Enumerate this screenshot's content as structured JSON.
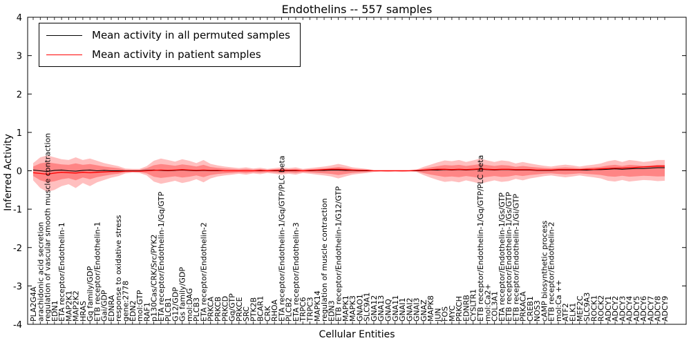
{
  "title": "Endothelins -- 557 samples",
  "axes": {
    "x_label": "Cellular Entities",
    "y_label": "Inferred Activity"
  },
  "legend": {
    "items": [
      {
        "label": "Mean activity in all permuted samples",
        "color": "#000000"
      },
      {
        "label": "Mean activity in patient samples",
        "color": "#ff0000"
      }
    ]
  },
  "chart_data": {
    "type": "line",
    "title": "Endothelins -- 557 samples",
    "xlabel": "Cellular Entities",
    "ylabel": "Inferred Activity",
    "ylim": [
      -4,
      4
    ],
    "yticks": [
      -4,
      -3,
      -2,
      -1,
      0,
      1,
      2,
      3,
      4
    ],
    "grid": false,
    "legend_position": "upper left",
    "categories": [
      "PLA2G4A",
      "arachidonic acid secretion",
      "regulation of vascular smooth muscle contraction",
      "EDN1",
      "ETA receptor/Endothelin-1",
      "MAP2K1",
      "MAP2K2",
      "HRAS",
      "Gq family/GDP",
      "ETB receptor/Endothelin-1",
      "Gai/GDP",
      "EDNRA",
      "response to oxidative stress",
      "gene:2778",
      "EDN2",
      "mol:GTP",
      "RAF1",
      "p130Cas/CRK/Src/PYK2",
      "ETA receptor/Endothelin-1/Gq/GTP",
      "PLCB1",
      "G12/GDP",
      "Gs family/GDP",
      "mol:DAG",
      "PLCB3",
      "ETA receptor/Endothelin-2",
      "PRKCA",
      "PRKCB",
      "PRKCD",
      "Gq/GTP",
      "PRKCE",
      "SRC",
      "PTK2B",
      "BCAR1",
      "CRK",
      "RHOA",
      "ETA receptor/Endothelin-1/Gq/GTP/PLC beta",
      "PLCB2",
      "ETA receptor/Endothelin-3",
      "TRPC6",
      "TRPC3",
      "MAPK14",
      "regulation of muscle contraction",
      "EDN3",
      "ETB receptor/Endothelin-1/G12/GTP",
      "MAPK1",
      "MAPK3",
      "GNAO1",
      "SLC9A1",
      "GNA12",
      "GNA13",
      "GNAQ",
      "GNA11",
      "GNAI1",
      "GNAI2",
      "GNAI3",
      "GNAZ",
      "MAPK8",
      "JUN",
      "FOS",
      "MYC",
      "PRKCH",
      "EDNRB",
      "CYSLTR1",
      "ETB receptor/Endothelin-1/Gq/GTP/PLC beta",
      "mol:Ca2+",
      "COL3A1",
      "ETA receptor/Endothelin-1/Gs/GTP",
      "ETB receptor/Endothelin-1/Gs/GTP",
      "ETB receptor/Endothelin-1/Gi/GTP",
      "PRKACA",
      "CREB1",
      "NOS3",
      "cAMP biosynthetic process",
      "ETB receptor/Endothelin-2",
      "mol:Ca ++",
      "ATF2",
      "ELK1",
      "MEF2C",
      "SLC9A3",
      "ROCK1",
      "ROCK2",
      "ADCY1",
      "ADCY2",
      "ADCY3",
      "ADCY4",
      "ADCY5",
      "ADCY6",
      "ADCY7",
      "ADCY8",
      "ADCY9"
    ],
    "series": [
      {
        "name": "Mean activity in all permuted samples",
        "color": "#000000",
        "values": [
          0.02,
          0.0,
          -0.02,
          0.01,
          0.02,
          0.0,
          -0.01,
          0.01,
          0.02,
          0.0,
          0.01,
          0.0,
          0.0,
          0.0,
          0.0,
          0.0,
          0.01,
          0.02,
          0.01,
          0.0,
          0.01,
          0.02,
          0.01,
          0.0,
          0.01,
          0.0,
          0.0,
          0.0,
          0.0,
          0.0,
          0.0,
          0.0,
          0.0,
          0.0,
          0.0,
          0.0,
          0.0,
          0.0,
          0.0,
          0.0,
          0.01,
          0.01,
          0.02,
          0.02,
          0.01,
          0.01,
          0.0,
          0.0,
          0.0,
          0.0,
          0.0,
          0.0,
          0.0,
          0.0,
          0.0,
          0.01,
          0.02,
          0.02,
          0.03,
          0.02,
          0.03,
          0.02,
          0.03,
          0.04,
          0.03,
          0.02,
          0.03,
          0.03,
          0.02,
          0.02,
          0.02,
          0.01,
          0.01,
          0.01,
          0.02,
          0.02,
          0.02,
          0.02,
          0.02,
          0.03,
          0.03,
          0.04,
          0.05,
          0.04,
          0.05,
          0.06,
          0.06,
          0.07,
          0.08,
          0.08
        ]
      },
      {
        "name": "Mean activity in patient samples",
        "color": "#ff0000",
        "values": [
          -0.05,
          -0.07,
          -0.09,
          -0.06,
          -0.04,
          -0.05,
          -0.06,
          -0.04,
          -0.05,
          -0.04,
          -0.03,
          -0.02,
          -0.02,
          -0.01,
          -0.01,
          -0.01,
          0.0,
          0.01,
          0.02,
          0.01,
          0.02,
          0.03,
          0.02,
          0.01,
          0.02,
          0.01,
          0.01,
          0.0,
          0.0,
          0.0,
          0.0,
          0.0,
          0.01,
          0.0,
          0.01,
          0.01,
          0.01,
          0.01,
          0.0,
          0.01,
          0.02,
          0.03,
          0.04,
          0.04,
          0.03,
          0.02,
          0.01,
          0.01,
          0.0,
          0.0,
          0.0,
          0.0,
          0.0,
          0.0,
          0.01,
          0.02,
          0.03,
          0.04,
          0.04,
          0.03,
          0.04,
          0.03,
          0.04,
          0.05,
          0.04,
          0.03,
          0.04,
          0.04,
          0.03,
          0.03,
          0.03,
          0.02,
          0.02,
          0.02,
          0.03,
          0.03,
          0.03,
          0.03,
          0.04,
          0.04,
          0.05,
          0.06,
          0.07,
          0.07,
          0.08,
          0.09,
          0.1,
          0.11,
          0.12,
          0.12
        ]
      }
    ],
    "band": {
      "color": "#ff0000",
      "outer_opacity": 0.25,
      "inner_opacity": 0.3,
      "inner_scale": 0.55,
      "outer_upper": [
        0.2,
        0.35,
        0.4,
        0.35,
        0.3,
        0.28,
        0.35,
        0.28,
        0.32,
        0.26,
        0.2,
        0.16,
        0.12,
        0.06,
        0.05,
        0.05,
        0.12,
        0.26,
        0.32,
        0.28,
        0.24,
        0.3,
        0.26,
        0.2,
        0.28,
        0.18,
        0.14,
        0.11,
        0.09,
        0.07,
        0.09,
        0.06,
        0.08,
        0.05,
        0.07,
        0.09,
        0.07,
        0.09,
        0.05,
        0.07,
        0.09,
        0.11,
        0.14,
        0.18,
        0.14,
        0.09,
        0.07,
        0.05,
        0.02,
        0.02,
        0.02,
        0.02,
        0.02,
        0.02,
        0.03,
        0.1,
        0.16,
        0.22,
        0.27,
        0.25,
        0.28,
        0.23,
        0.27,
        0.32,
        0.27,
        0.23,
        0.27,
        0.25,
        0.19,
        0.23,
        0.19,
        0.16,
        0.13,
        0.11,
        0.14,
        0.16,
        0.14,
        0.11,
        0.14,
        0.16,
        0.19,
        0.25,
        0.28,
        0.23,
        0.28,
        0.26,
        0.23,
        0.25,
        0.28,
        0.28
      ],
      "outer_lower": [
        0.25,
        0.45,
        0.55,
        0.5,
        0.4,
        0.35,
        0.45,
        0.32,
        0.4,
        0.3,
        0.24,
        0.18,
        0.14,
        0.07,
        0.05,
        0.06,
        0.12,
        0.28,
        0.34,
        0.3,
        0.26,
        0.32,
        0.28,
        0.22,
        0.3,
        0.2,
        0.15,
        0.12,
        0.1,
        0.08,
        0.1,
        0.07,
        0.09,
        0.06,
        0.08,
        0.1,
        0.08,
        0.1,
        0.06,
        0.08,
        0.1,
        0.12,
        0.15,
        0.2,
        0.15,
        0.1,
        0.08,
        0.06,
        0.03,
        0.02,
        0.03,
        0.02,
        0.03,
        0.02,
        0.03,
        0.11,
        0.18,
        0.24,
        0.29,
        0.27,
        0.3,
        0.25,
        0.29,
        0.34,
        0.29,
        0.25,
        0.29,
        0.27,
        0.21,
        0.25,
        0.2,
        0.17,
        0.14,
        0.12,
        0.15,
        0.17,
        0.15,
        0.12,
        0.15,
        0.17,
        0.2,
        0.26,
        0.28,
        0.24,
        0.28,
        0.26,
        0.24,
        0.25,
        0.27,
        0.26
      ]
    }
  }
}
